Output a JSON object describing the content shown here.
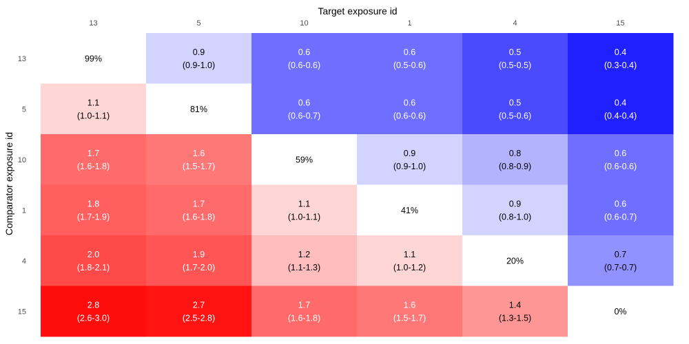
{
  "chart_data": {
    "type": "heatmap",
    "xlabel": "Target exposure id",
    "ylabel": "Comparator exposure id",
    "x_categories": [
      "13",
      "5",
      "10",
      "1",
      "4",
      "15"
    ],
    "y_categories": [
      "13",
      "5",
      "10",
      "1",
      "4",
      "15"
    ],
    "cells": [
      [
        {
          "diag": "99%"
        },
        {
          "value": 0.9,
          "ci": "(0.9-1.0)"
        },
        {
          "value": 0.6,
          "ci": "(0.6-0.6)"
        },
        {
          "value": 0.6,
          "ci": "(0.5-0.6)"
        },
        {
          "value": 0.5,
          "ci": "(0.5-0.5)"
        },
        {
          "value": 0.4,
          "ci": "(0.3-0.4)"
        }
      ],
      [
        {
          "value": 1.1,
          "ci": "(1.0-1.1)"
        },
        {
          "diag": "81%"
        },
        {
          "value": 0.6,
          "ci": "(0.6-0.7)"
        },
        {
          "value": 0.6,
          "ci": "(0.6-0.6)"
        },
        {
          "value": 0.5,
          "ci": "(0.5-0.6)"
        },
        {
          "value": 0.4,
          "ci": "(0.4-0.4)"
        }
      ],
      [
        {
          "value": 1.7,
          "ci": "(1.6-1.8)"
        },
        {
          "value": 1.6,
          "ci": "(1.5-1.7)"
        },
        {
          "diag": "59%"
        },
        {
          "value": 0.9,
          "ci": "(0.9-1.0)"
        },
        {
          "value": 0.8,
          "ci": "(0.8-0.9)"
        },
        {
          "value": 0.6,
          "ci": "(0.6-0.6)"
        }
      ],
      [
        {
          "value": 1.8,
          "ci": "(1.7-1.9)"
        },
        {
          "value": 1.7,
          "ci": "(1.6-1.8)"
        },
        {
          "value": 1.1,
          "ci": "(1.0-1.1)"
        },
        {
          "diag": "41%"
        },
        {
          "value": 0.9,
          "ci": "(0.8-1.0)"
        },
        {
          "value": 0.6,
          "ci": "(0.6-0.7)"
        }
      ],
      [
        {
          "value": 2.0,
          "ci": "(1.8-2.1)"
        },
        {
          "value": 1.9,
          "ci": "(1.7-2.0)"
        },
        {
          "value": 1.2,
          "ci": "(1.1-1.3)"
        },
        {
          "value": 1.1,
          "ci": "(1.0-1.2)"
        },
        {
          "diag": "20%"
        },
        {
          "value": 0.7,
          "ci": "(0.7-0.7)"
        }
      ],
      [
        {
          "value": 2.8,
          "ci": "(2.6-3.0)"
        },
        {
          "value": 2.7,
          "ci": "(2.5-2.8)"
        },
        {
          "value": 1.7,
          "ci": "(1.6-1.8)"
        },
        {
          "value": 1.6,
          "ci": "(1.5-1.7)"
        },
        {
          "value": 1.4,
          "ci": "(1.3-1.5)"
        },
        {
          "diag": "0%"
        }
      ]
    ],
    "colors": {
      "high": "#ff0000",
      "low": "#0000ff",
      "mid": "#ffffff"
    },
    "color_scale": "log"
  }
}
